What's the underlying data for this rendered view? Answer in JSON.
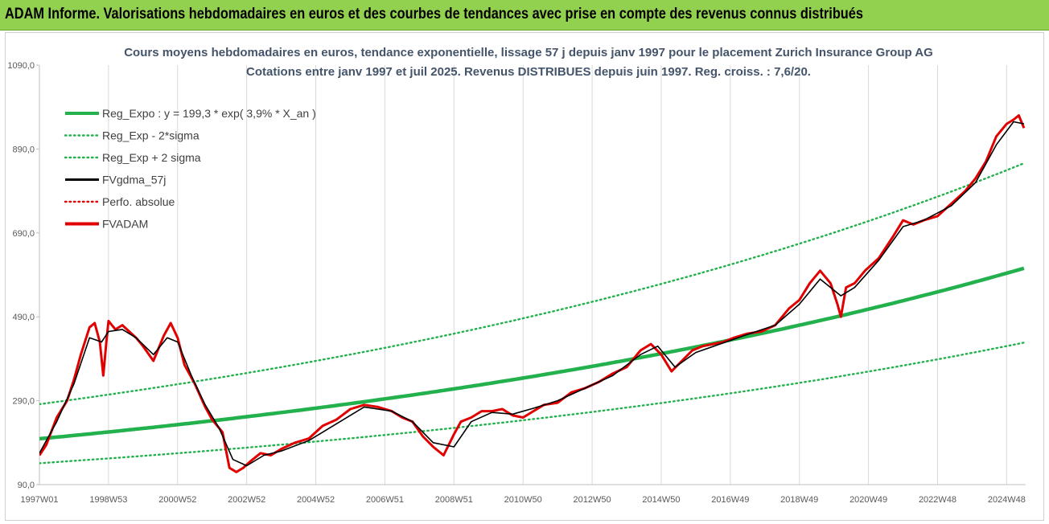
{
  "banner": {
    "title": "ADAM Informe. Valorisations hebdomadaires en euros et des courbes de tendances avec prise en compte des revenus connus distribués",
    "background": "#92d050"
  },
  "chart_data": {
    "type": "line",
    "title_line1": "Cours moyens hebdomadaires en euros, tendance exponentielle, lissage 57 j depuis janv 1997 pour le placement Zurich Insurance Group AG",
    "title_line2": "Cotations entre janv 1997 et juil 2025. Revenus DISTRIBUES depuis juin 1997. Reg. croiss. : 7,6/20.",
    "xlabel": "",
    "ylabel": "",
    "ylim": [
      90,
      1090
    ],
    "yticks": [
      "1090,0",
      "890,0",
      "690,0",
      "490,0",
      "290,0",
      "90,0"
    ],
    "yticks_values": [
      1090,
      890,
      690,
      490,
      290,
      90
    ],
    "xlim": [
      1997.0,
      2025.55
    ],
    "xticks": [
      "1997W01",
      "1998W53",
      "2000W52",
      "2002W52",
      "2004W52",
      "2006W51",
      "2008W51",
      "2010W50",
      "2012W50",
      "2014W50",
      "2016W49",
      "2018W49",
      "2020W49",
      "2022W48",
      "2024W48"
    ],
    "xticks_years": [
      1997.0,
      1999.0,
      2001.0,
      2003.0,
      2005.0,
      2007.0,
      2009.0,
      2011.0,
      2013.0,
      2015.0,
      2017.0,
      2019.0,
      2021.0,
      2023.0,
      2025.0
    ],
    "grid": "vertical",
    "legend_position": "top-left",
    "regression": {
      "a": 199.3,
      "rate": 0.039,
      "sigma_log": 0.346
    },
    "series": [
      {
        "name": "Reg_Expo : y = 199,3 * exp( 3,9% *  X_an )",
        "color": "#22b14c",
        "style": "solid-thick"
      },
      {
        "name": "Reg_Exp - 2*sigma",
        "color": "#22b14c",
        "style": "dotted"
      },
      {
        "name": "Reg_Exp + 2 sigma",
        "color": "#22b14c",
        "style": "dotted"
      },
      {
        "name": "FVgdma_57j",
        "color": "#000000",
        "style": "solid"
      },
      {
        "name": "Perfo. absolue",
        "color": "#e00000",
        "style": "dotted"
      },
      {
        "name": "FVADAM",
        "color": "#e00000",
        "style": "solid-thick"
      }
    ],
    "fvadam": {
      "x": [
        1997.0,
        1997.2,
        1997.5,
        1997.8,
        1998.0,
        1998.2,
        1998.45,
        1998.6,
        1998.75,
        1998.85,
        1998.95,
        1999.0,
        1999.2,
        1999.4,
        1999.6,
        1999.8,
        2000.0,
        2000.3,
        2000.6,
        2000.8,
        2001.0,
        2001.2,
        2001.5,
        2001.8,
        2002.0,
        2002.3,
        2002.5,
        2002.7,
        2002.9,
        2003.1,
        2003.4,
        2003.7,
        2004.0,
        2004.4,
        2004.8,
        2005.2,
        2005.6,
        2006.0,
        2006.4,
        2006.8,
        2007.2,
        2007.5,
        2007.8,
        2008.1,
        2008.4,
        2008.7,
        2009.0,
        2009.2,
        2009.5,
        2009.8,
        2010.1,
        2010.4,
        2010.7,
        2011.0,
        2011.3,
        2011.6,
        2012.0,
        2012.4,
        2012.8,
        2013.2,
        2013.6,
        2014.0,
        2014.4,
        2014.7,
        2015.0,
        2015.3,
        2015.6,
        2015.9,
        2016.2,
        2016.5,
        2016.8,
        2017.1,
        2017.5,
        2017.9,
        2018.3,
        2018.7,
        2019.0,
        2019.3,
        2019.6,
        2019.9,
        2020.1,
        2020.2,
        2020.35,
        2020.6,
        2020.9,
        2021.3,
        2021.7,
        2022.0,
        2022.3,
        2022.6,
        2023.0,
        2023.4,
        2023.8,
        2024.1,
        2024.4,
        2024.7,
        2025.0,
        2025.2,
        2025.35,
        2025.5
      ],
      "y": [
        160,
        185,
        250,
        290,
        340,
        400,
        465,
        475,
        430,
        350,
        440,
        480,
        460,
        470,
        455,
        440,
        420,
        385,
        445,
        475,
        440,
        375,
        330,
        275,
        245,
        215,
        130,
        120,
        130,
        145,
        165,
        160,
        175,
        190,
        200,
        230,
        245,
        270,
        280,
        275,
        265,
        250,
        240,
        205,
        180,
        160,
        210,
        240,
        250,
        265,
        265,
        270,
        255,
        250,
        265,
        280,
        285,
        310,
        320,
        335,
        355,
        370,
        410,
        425,
        400,
        360,
        385,
        410,
        420,
        425,
        430,
        440,
        450,
        455,
        470,
        510,
        530,
        570,
        600,
        570,
        520,
        490,
        560,
        570,
        600,
        630,
        680,
        720,
        710,
        720,
        730,
        760,
        790,
        820,
        860,
        920,
        950,
        960,
        970,
        940
      ]
    },
    "fvgdma": {
      "x": [
        1997.0,
        1997.5,
        1998.0,
        1998.45,
        1998.8,
        1999.0,
        1999.4,
        1999.8,
        2000.3,
        2000.7,
        2001.0,
        2001.4,
        2001.8,
        2002.2,
        2002.6,
        2003.0,
        2003.5,
        2004.0,
        2004.8,
        2005.6,
        2006.4,
        2007.2,
        2007.8,
        2008.4,
        2009.0,
        2009.5,
        2010.1,
        2010.7,
        2011.3,
        2012.0,
        2012.8,
        2013.6,
        2014.4,
        2014.9,
        2015.4,
        2016.0,
        2016.8,
        2017.5,
        2018.3,
        2019.0,
        2019.6,
        2020.2,
        2020.6,
        2021.3,
        2022.0,
        2022.6,
        2023.4,
        2024.1,
        2024.7,
        2025.2,
        2025.5
      ],
      "y": [
        165,
        240,
        330,
        440,
        430,
        455,
        460,
        440,
        400,
        440,
        430,
        350,
        280,
        225,
        150,
        135,
        160,
        170,
        195,
        235,
        275,
        265,
        240,
        190,
        180,
        240,
        262,
        258,
        272,
        290,
        320,
        350,
        400,
        420,
        370,
        405,
        428,
        448,
        470,
        520,
        580,
        540,
        560,
        625,
        705,
        720,
        755,
        810,
        900,
        955,
        950
      ]
    }
  }
}
